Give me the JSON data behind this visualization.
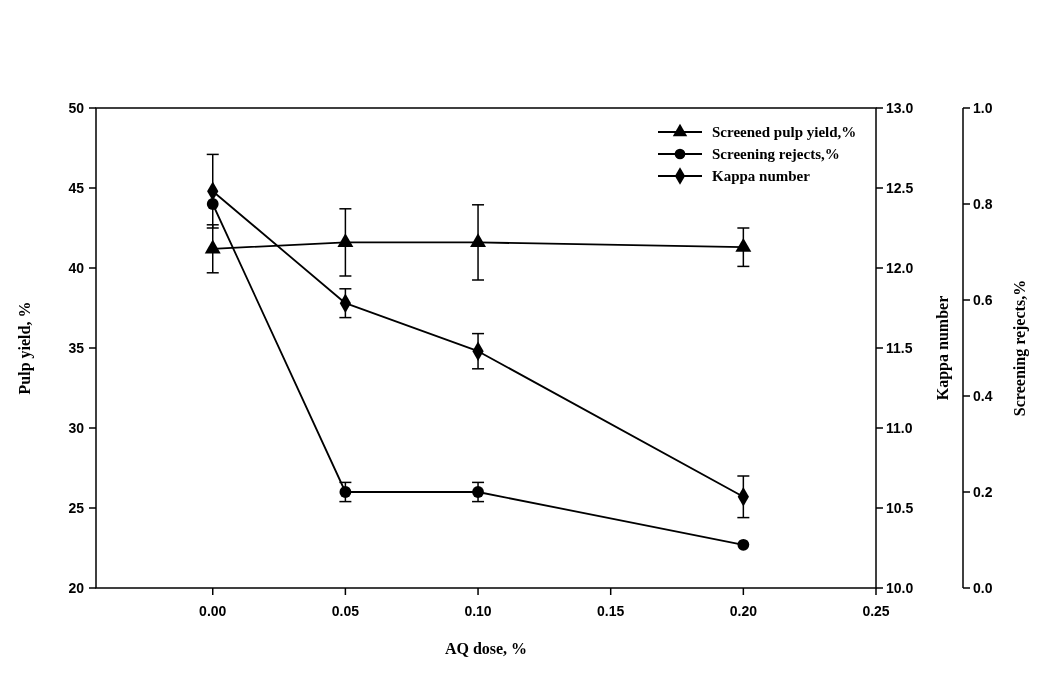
{
  "chart_data": {
    "type": "line",
    "xlabel": "AQ dose, %",
    "ylabel": "Pulp yield, %",
    "y2label": "Kappa number",
    "y3label": "Screening rejects,%",
    "x": [
      0,
      0.05,
      0.1,
      0.2
    ],
    "xlim": [
      -0.044,
      0.25
    ],
    "xticks": [
      {
        "value": 0,
        "label": "0.00"
      },
      {
        "value": 0.05,
        "label": "0.05"
      },
      {
        "value": 0.1,
        "label": "0.10"
      },
      {
        "value": 0.15,
        "label": "0.15"
      },
      {
        "value": 0.2,
        "label": "0.20"
      },
      {
        "value": 0.25,
        "label": "0.25"
      }
    ],
    "ylim": [
      20,
      50
    ],
    "yticks": [
      20,
      25,
      30,
      35,
      40,
      45,
      50
    ],
    "y2lim": [
      10,
      13
    ],
    "y2ticks": [
      {
        "value": 10,
        "label": "10.0"
      },
      {
        "value": 10.5,
        "label": "10.5"
      },
      {
        "value": 11,
        "label": "11.0"
      },
      {
        "value": 11.5,
        "label": "11.5"
      },
      {
        "value": 12,
        "label": "12.0"
      },
      {
        "value": 12.5,
        "label": "12.5"
      },
      {
        "value": 13,
        "label": "13.0"
      }
    ],
    "y3lim": [
      0,
      1
    ],
    "y3ticks": [
      {
        "value": 0,
        "label": "0.0"
      },
      {
        "value": 0.2,
        "label": "0.2"
      },
      {
        "value": 0.4,
        "label": "0.4"
      },
      {
        "value": 0.6,
        "label": "0.6"
      },
      {
        "value": 0.8,
        "label": "0.8"
      },
      {
        "value": 1,
        "label": "1.0"
      }
    ],
    "legend": "top right",
    "grid": false,
    "series": [
      {
        "name": "Screened pulp yield,%",
        "color": "#000000",
        "marker": "triangle",
        "values": [
          41.2,
          41.6,
          41.6,
          41.3
        ],
        "errors": [
          1.5,
          2.1,
          2.35,
          1.2
        ]
      },
      {
        "name": "Screening rejects,%",
        "color": "#000000",
        "marker": "circle",
        "axis": "y3",
        "values": [
          0.8,
          0.2,
          0.2,
          0.09
        ],
        "errors": [
          null,
          0.02,
          0.02,
          null
        ]
      },
      {
        "name": "Kappa number",
        "color": "#000000",
        "marker": "diamond",
        "axis": "y2",
        "values": [
          12.48,
          11.78,
          11.48,
          10.57
        ],
        "errors": [
          0.23,
          0.09,
          0.11,
          0.13
        ]
      }
    ]
  }
}
